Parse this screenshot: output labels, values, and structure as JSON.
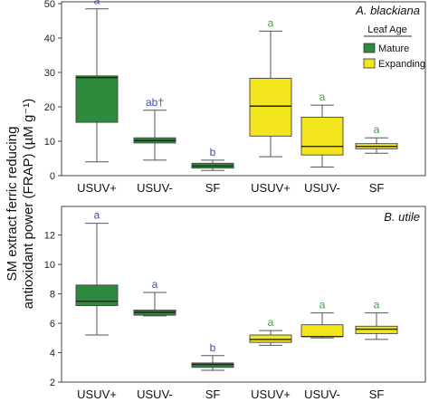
{
  "y_axis_title": {
    "line1": "SM extract ferric reducing",
    "line2": "antioxidant power (FRAP) (µM g⁻¹)"
  },
  "legend": {
    "title": "Leaf Age",
    "items": [
      {
        "label": "Mature",
        "color": "#2e8b3e"
      },
      {
        "label": "Expanding",
        "color": "#f2e51c"
      }
    ]
  },
  "colors": {
    "mature": "#2e8b3e",
    "expanding": "#f2e51c",
    "sig_mature": "#3a4fa8",
    "sig_expanding": "#3aa63a"
  },
  "chart_data": [
    {
      "type": "box",
      "title": "A. blackiana",
      "ylim": [
        0,
        50
      ],
      "yticks": [
        "0",
        "10",
        "20",
        "30",
        "40",
        "50"
      ],
      "categories": [
        "USUV+",
        "USUV-",
        "SF",
        "USUV+",
        "USUV-",
        "SF"
      ],
      "boxes": [
        {
          "group": "Mature",
          "min": 4,
          "q1": 15.5,
          "median": 28.5,
          "q3": 29,
          "max": 48.5,
          "letter": "a"
        },
        {
          "group": "Mature",
          "min": 4.5,
          "q1": 9.5,
          "median": 10.2,
          "q3": 11,
          "max": 19,
          "letter": "ab†"
        },
        {
          "group": "Mature",
          "min": 1.5,
          "q1": 2.2,
          "median": 2.8,
          "q3": 3.6,
          "max": 4.5,
          "letter": "b"
        },
        {
          "group": "Expanding",
          "min": 5.5,
          "q1": 11.5,
          "median": 20.2,
          "q3": 28.3,
          "max": 42,
          "letter": "a"
        },
        {
          "group": "Expanding",
          "min": 2.5,
          "q1": 6,
          "median": 8.5,
          "q3": 17,
          "max": 20.5,
          "letter": "a"
        },
        {
          "group": "Expanding",
          "min": 6.5,
          "q1": 7.8,
          "median": 8.5,
          "q3": 9.3,
          "max": 11,
          "letter": "a"
        }
      ]
    },
    {
      "type": "box",
      "title": "B. utile",
      "ylim": [
        2,
        13.7
      ],
      "yticks": [
        "2",
        "4",
        "6",
        "8",
        "10",
        "12"
      ],
      "categories": [
        "USUV+",
        "USUV-",
        "SF",
        "USUV+",
        "USUV-",
        "SF"
      ],
      "boxes": [
        {
          "group": "Mature",
          "min": 5.2,
          "q1": 7.2,
          "median": 7.5,
          "q3": 8.6,
          "max": 12.8,
          "letter": "a"
        },
        {
          "group": "Mature",
          "min": 6.5,
          "q1": 6.55,
          "median": 6.75,
          "q3": 6.9,
          "max": 8.1,
          "letter": "a"
        },
        {
          "group": "Mature",
          "min": 2.8,
          "q1": 3.0,
          "median": 3.2,
          "q3": 3.3,
          "max": 3.8,
          "letter": "b"
        },
        {
          "group": "Expanding",
          "min": 4.5,
          "q1": 4.7,
          "median": 4.9,
          "q3": 5.2,
          "max": 5.5,
          "letter": "a"
        },
        {
          "group": "Expanding",
          "min": 5.0,
          "q1": 5.1,
          "median": 5.1,
          "q3": 5.9,
          "max": 6.7,
          "letter": "a"
        },
        {
          "group": "Expanding",
          "min": 4.9,
          "q1": 5.3,
          "median": 5.6,
          "q3": 5.8,
          "max": 6.7,
          "letter": "a"
        }
      ]
    }
  ]
}
